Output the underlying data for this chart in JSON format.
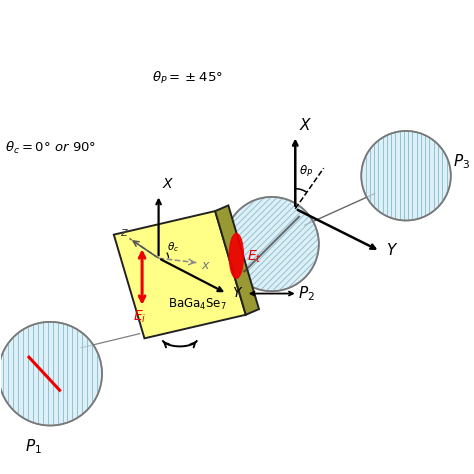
{
  "bg_color": "#ffffff",
  "crystal_yellow": "#ffff88",
  "crystal_olive": "#999933",
  "polarizer_fill": "#d0eaf5",
  "polarizer_edge": "#777777",
  "hatch_color": "#8bbccc",
  "arrow_red": "#ee0000",
  "arrow_black": "#111111",
  "text_red": "#ee0000",
  "figsize": [
    4.74,
    4.74
  ],
  "dpi": 100
}
